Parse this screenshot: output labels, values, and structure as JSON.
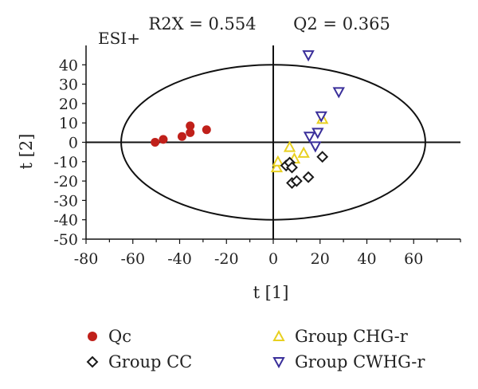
{
  "chart_data": {
    "type": "scatter",
    "title_left": "R2X = 0.554",
    "title_right": "Q2 = 0.365",
    "annotation": "ESI+",
    "xlabel": "t [1]",
    "ylabel": "t [2]",
    "xlim": [
      -80,
      80
    ],
    "ylim": [
      -50,
      50
    ],
    "xticks": [
      -80,
      -60,
      -40,
      -20,
      0,
      20,
      40,
      60
    ],
    "yticks": [
      40,
      30,
      20,
      10,
      0,
      -10,
      -20,
      -30,
      -40,
      -50
    ],
    "grid": false,
    "legend_position": "bottom",
    "hotelling_ellipse": {
      "semi_axis_x": 65,
      "semi_axis_y": 40
    },
    "series": [
      {
        "name": "Qc",
        "marker": "circle",
        "color": "#c0201a",
        "points": [
          [
            -50.5,
            0
          ],
          [
            -47,
            1.5
          ],
          [
            -39,
            3
          ],
          [
            -35.5,
            5
          ],
          [
            -35.5,
            8.5
          ],
          [
            -28.5,
            6.5
          ]
        ]
      },
      {
        "name": "Group CHG-r",
        "marker": "triangle-up",
        "color": "#e8d020",
        "points": [
          [
            1.5,
            -13
          ],
          [
            2,
            -10
          ],
          [
            7,
            -2.5
          ],
          [
            9,
            -8.5
          ],
          [
            13,
            -5.5
          ],
          [
            21,
            12
          ]
        ]
      },
      {
        "name": "Group CC",
        "marker": "diamond",
        "color": "#1a1a1a",
        "points": [
          [
            5.5,
            -12
          ],
          [
            7,
            -10.5
          ],
          [
            8,
            -13
          ],
          [
            8,
            -21
          ],
          [
            10,
            -20
          ],
          [
            15,
            -18
          ],
          [
            21,
            -7.5
          ]
        ]
      },
      {
        "name": "Group CWHG-r",
        "marker": "triangle-down",
        "color": "#3a2f9a",
        "points": [
          [
            15,
            45
          ],
          [
            15.5,
            3
          ],
          [
            18,
            -2
          ],
          [
            19,
            5
          ],
          [
            20.5,
            13.5
          ],
          [
            28,
            26
          ]
        ]
      }
    ]
  }
}
